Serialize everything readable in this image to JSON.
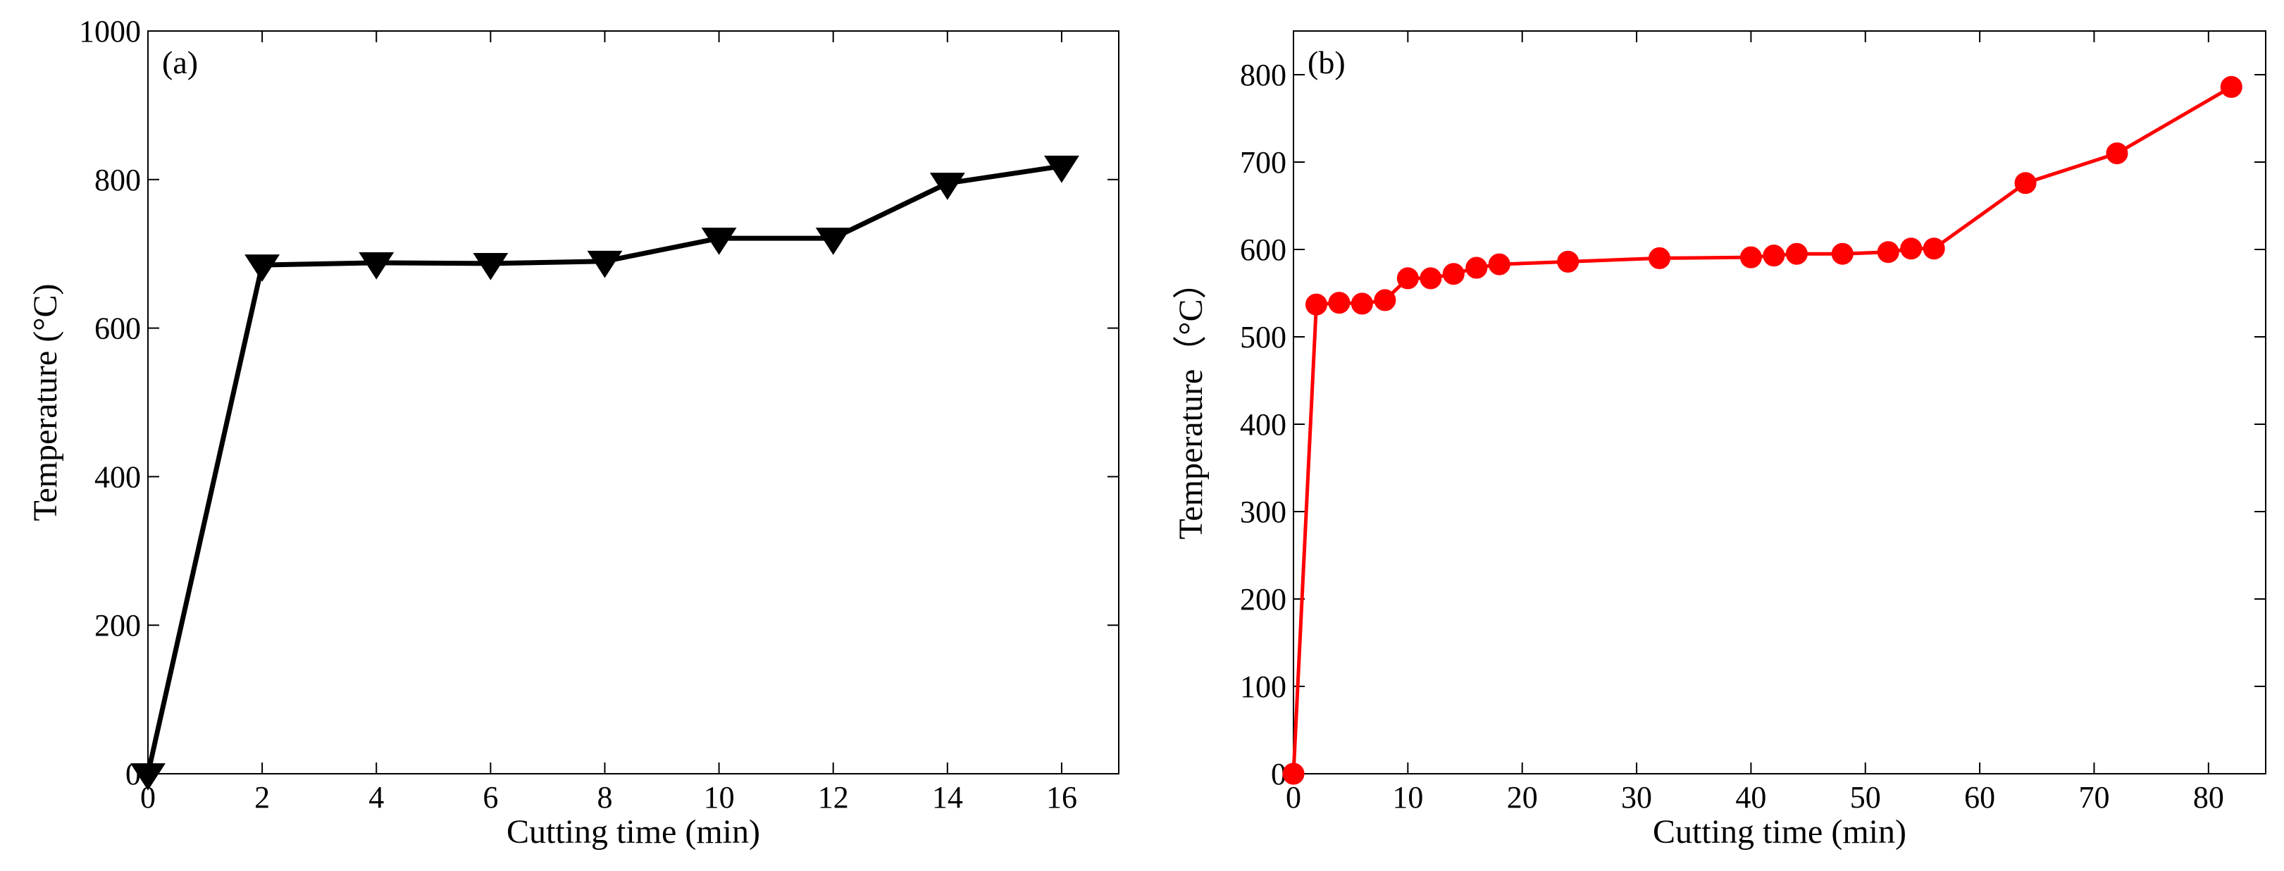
{
  "chart_data": [
    {
      "type": "line",
      "panel_label": "(a)",
      "xlabel": "Cutting time (min)",
      "ylabel": "Temperature (°C)",
      "xlim": [
        0,
        17
      ],
      "ylim": [
        0,
        1000
      ],
      "xticks": [
        0,
        2,
        4,
        6,
        8,
        10,
        12,
        14,
        16
      ],
      "yticks": [
        0,
        200,
        400,
        600,
        800,
        1000
      ],
      "grid": false,
      "series": [
        {
          "name": "Temperature",
          "color": "#000000",
          "marker": "triangle-down",
          "x": [
            0,
            2,
            4,
            6,
            8,
            10,
            12,
            14,
            16
          ],
          "y": [
            0,
            685,
            688,
            687,
            690,
            721,
            721,
            795,
            818
          ]
        }
      ]
    },
    {
      "type": "line",
      "panel_label": "(b)",
      "xlabel": "Cutting time (min)",
      "ylabel": "Temperature（°C）",
      "xlim": [
        0,
        85
      ],
      "ylim": [
        0,
        850
      ],
      "xticks": [
        0,
        10,
        20,
        30,
        40,
        50,
        60,
        70,
        80
      ],
      "yticks": [
        0,
        100,
        200,
        300,
        400,
        500,
        600,
        700,
        800
      ],
      "grid": false,
      "series": [
        {
          "name": "Temperature",
          "color": "#ff0000",
          "marker": "circle",
          "x": [
            0,
            2,
            4,
            6,
            8,
            10,
            12,
            14,
            16,
            18,
            24,
            32,
            40,
            42,
            44,
            48,
            52,
            54,
            56,
            64,
            72,
            82
          ],
          "y": [
            0,
            537,
            539,
            538,
            542,
            567,
            567,
            572,
            579,
            583,
            586,
            590,
            591,
            593,
            595,
            595,
            597,
            601,
            601,
            676,
            710,
            786
          ]
        }
      ]
    }
  ]
}
